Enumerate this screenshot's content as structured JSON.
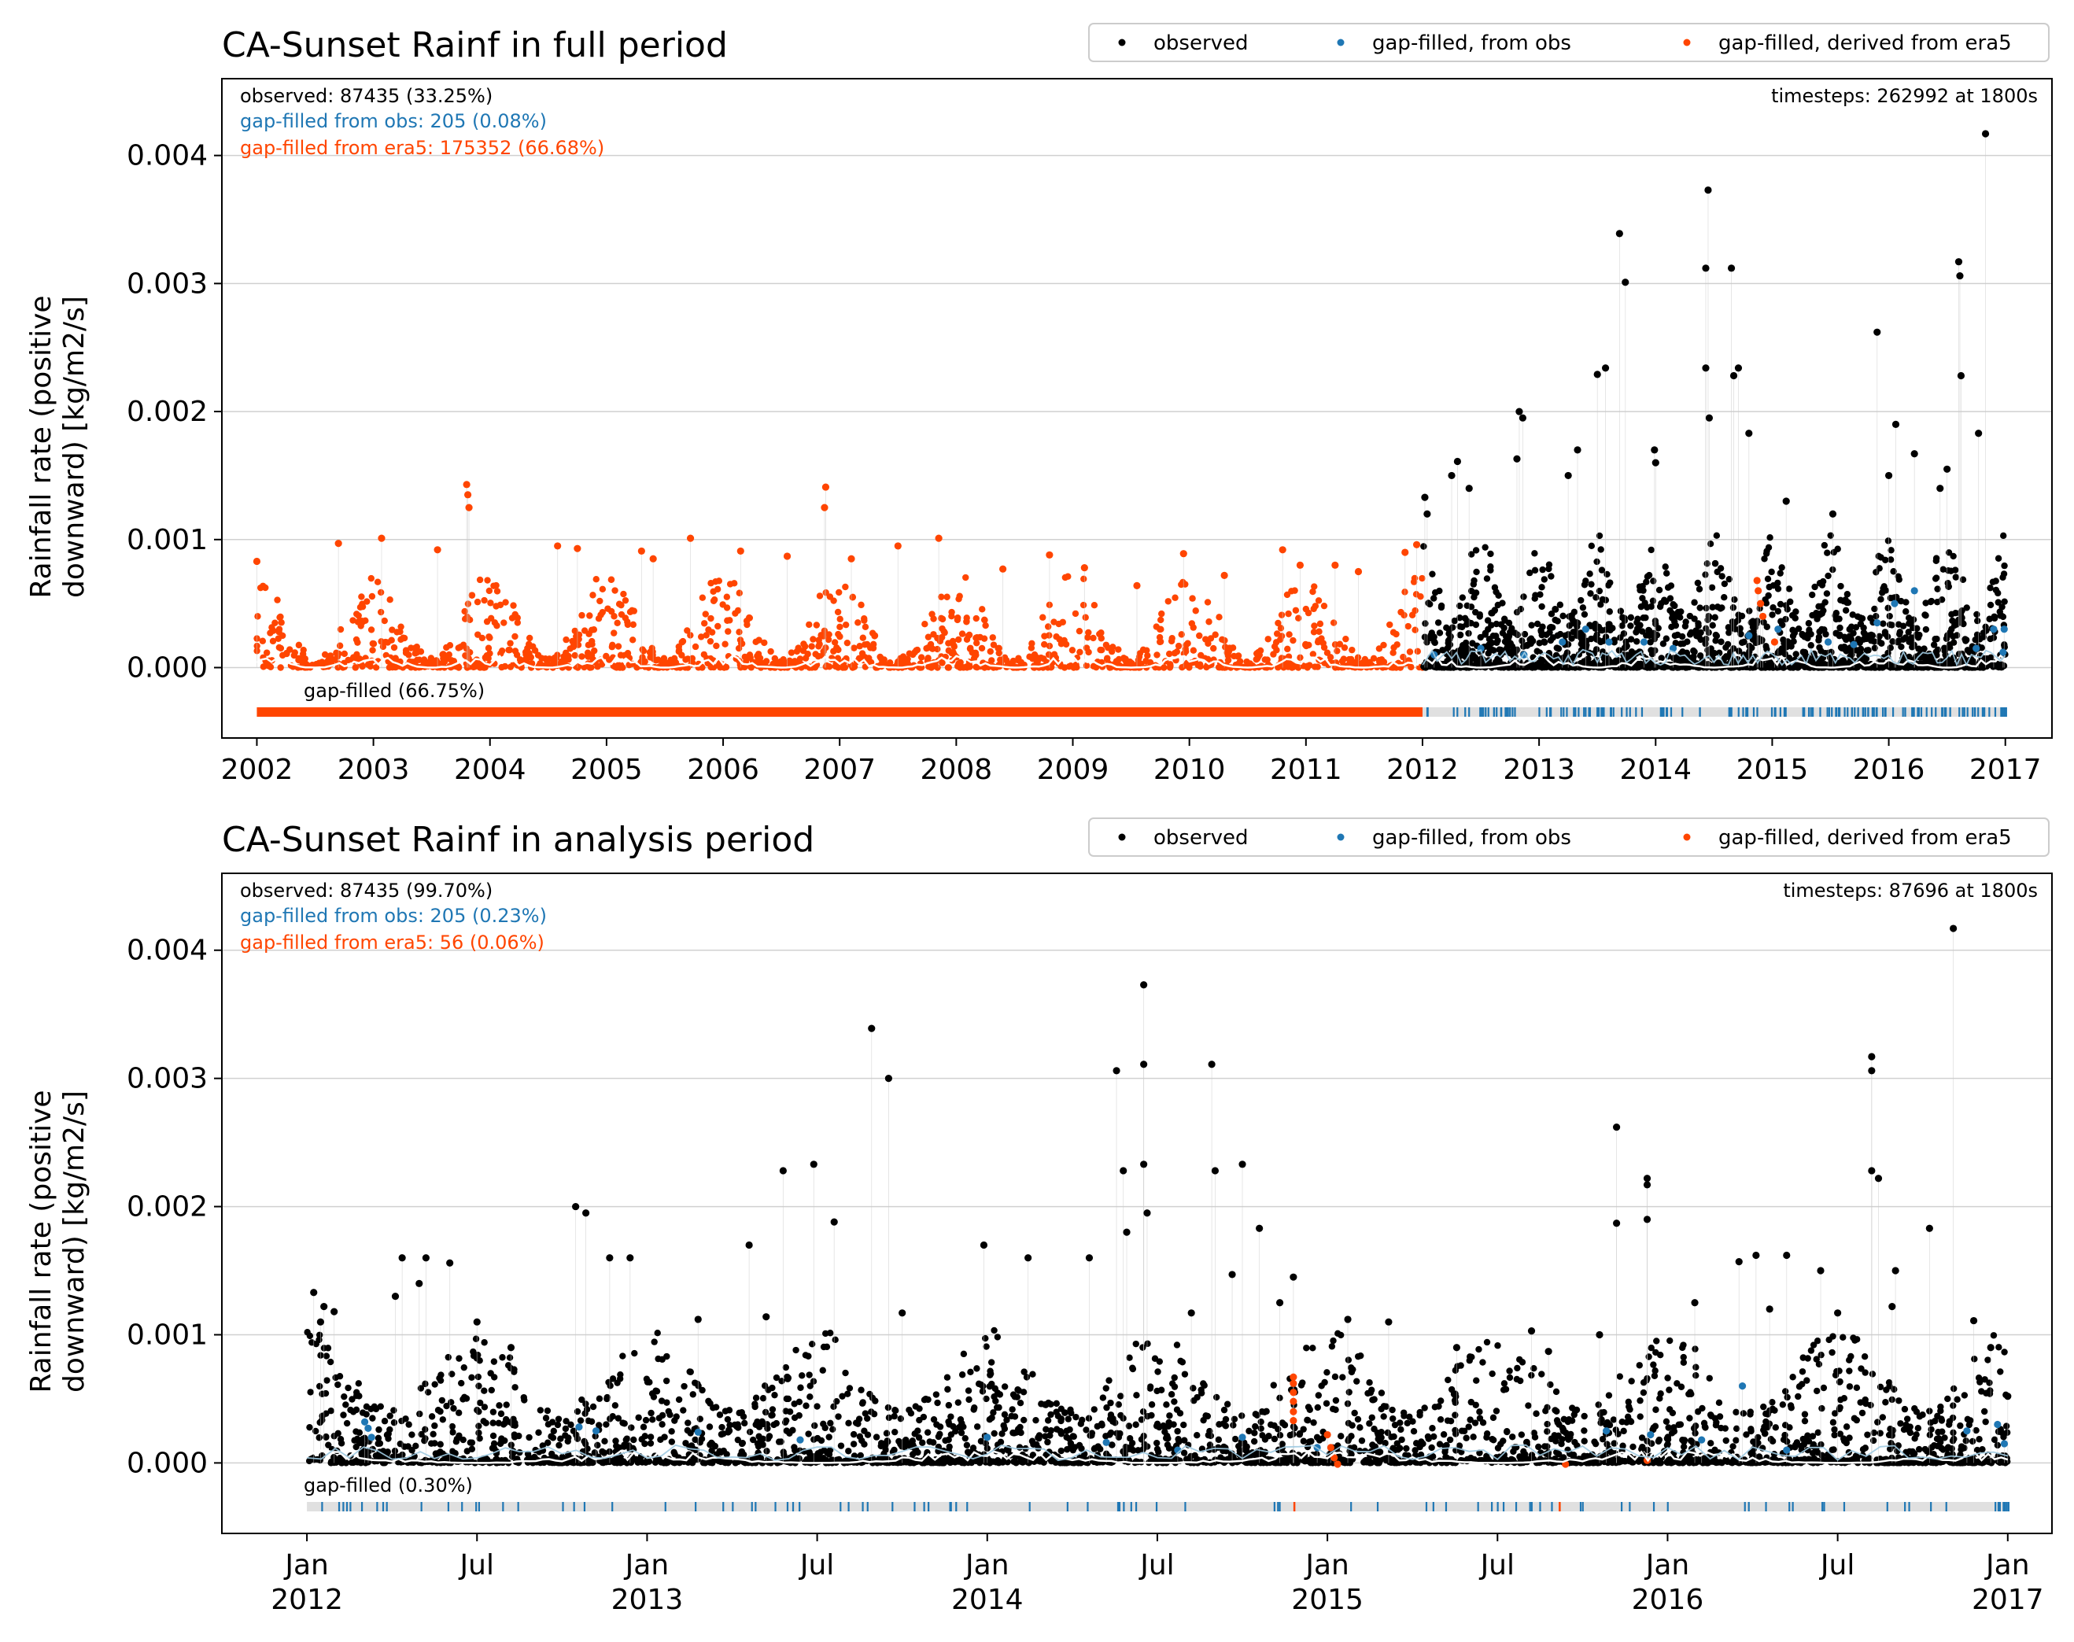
{
  "figure": {
    "colors": {
      "observed": "#000000",
      "from_obs": "#1f77b4",
      "from_era5": "#ff4500",
      "mean_line": "#ffffff",
      "gap_bg": "#e0e0e0",
      "grid": "#d0d0d0"
    },
    "legend": [
      "observed",
      "gap-filled, from obs",
      "gap-filled, derived from era5"
    ]
  },
  "chart_data": [
    {
      "type": "scatter",
      "title": "CA-Sunset Rainf in full period",
      "ylabel_lines": [
        "Rainfall rate (positive",
        "downward) [kg/m2/s]"
      ],
      "ylim": [
        -0.00055,
        0.0046
      ],
      "yticks": [
        "0.000",
        "0.001",
        "0.002",
        "0.003",
        "0.004"
      ],
      "ytick_values": [
        0,
        0.001,
        0.002,
        0.003,
        0.004
      ],
      "xlim": [
        2001.7,
        2017.4
      ],
      "xticks": [
        "2002",
        "2003",
        "2004",
        "2005",
        "2006",
        "2007",
        "2008",
        "2009",
        "2010",
        "2011",
        "2012",
        "2013",
        "2014",
        "2015",
        "2016",
        "2017"
      ],
      "xtick_values": [
        2002,
        2003,
        2004,
        2005,
        2006,
        2007,
        2008,
        2009,
        2010,
        2011,
        2012,
        2013,
        2014,
        2015,
        2016,
        2017
      ],
      "grid": "horizontal",
      "legend_position": "top-right",
      "annotations": {
        "observed": "observed: 87435 (33.25%)",
        "from_obs": "gap-filled from obs: 205 (0.08%)",
        "from_era5": "gap-filled from era5: 175352 (66.68%)",
        "timesteps": "timesteps: 262992 at 1800s",
        "gap_filled": "gap-filled (66.75%)"
      },
      "era5_period": [
        2002.0,
        2012.0
      ],
      "observed_period": [
        2012.0,
        2017.0
      ],
      "series": [
        {
          "name": "observed",
          "points": [
            [
              2013.69,
              0.00339
            ],
            [
              2013.74,
              0.00301
            ],
            [
              2014.45,
              0.00373
            ],
            [
              2014.43,
              0.00312
            ],
            [
              2014.65,
              0.00312
            ],
            [
              2016.83,
              0.00417
            ],
            [
              2016.6,
              0.00317
            ],
            [
              2016.61,
              0.00306
            ],
            [
              2015.9,
              0.00262
            ],
            [
              2014.43,
              0.00234
            ],
            [
              2013.5,
              0.00229
            ],
            [
              2013.57,
              0.00234
            ],
            [
              2016.62,
              0.00228
            ],
            [
              2014.67,
              0.00228
            ],
            [
              2014.71,
              0.00234
            ],
            [
              2012.83,
              0.002
            ],
            [
              2012.86,
              0.00195
            ],
            [
              2016.06,
              0.0019
            ],
            [
              2014.46,
              0.00195
            ],
            [
              2014.8,
              0.00183
            ],
            [
              2016.77,
              0.00183
            ],
            [
              2012.81,
              0.00163
            ],
            [
              2013.33,
              0.0017
            ],
            [
              2013.99,
              0.0017
            ],
            [
              2012.3,
              0.00161
            ],
            [
              2012.25,
              0.0015
            ],
            [
              2012.4,
              0.0014
            ],
            [
              2016.22,
              0.00167
            ],
            [
              2016.5,
              0.00155
            ],
            [
              2016.44,
              0.0014
            ],
            [
              2012.02,
              0.00133
            ],
            [
              2012.04,
              0.0012
            ],
            [
              2015.12,
              0.0013
            ],
            [
              2015.52,
              0.0012
            ],
            [
              2016.0,
              0.0015
            ],
            [
              2014.0,
              0.0016
            ],
            [
              2013.25,
              0.0015
            ]
          ]
        },
        {
          "name": "gap-filled, from obs",
          "points": [
            [
              2016.22,
              0.0006
            ],
            [
              2016.05,
              0.0005
            ],
            [
              2015.9,
              0.00035
            ],
            [
              2015.48,
              0.0002
            ],
            [
              2015.05,
              0.0003
            ],
            [
              2014.8,
              0.00025
            ],
            [
              2014.15,
              0.00015
            ],
            [
              2013.9,
              0.0002
            ],
            [
              2013.6,
              0.0002
            ],
            [
              2013.2,
              0.0002
            ],
            [
              2012.87,
              0.0001
            ],
            [
              2012.5,
              0.00015
            ],
            [
              2016.99,
              0.0003
            ],
            [
              2016.98,
              0.00012
            ],
            [
              2016.9,
              0.0003
            ],
            [
              2016.75,
              0.00015
            ],
            [
              2015.7,
              0.00018
            ],
            [
              2013.4,
              0.0003
            ],
            [
              2012.1,
              0.0001
            ]
          ]
        },
        {
          "name": "gap-filled, derived from era5",
          "points": [
            [
              2002.0,
              0.00083
            ],
            [
              2002.7,
              0.00097
            ],
            [
              2003.07,
              0.00101
            ],
            [
              2003.55,
              0.00092
            ],
            [
              2003.8,
              0.00143
            ],
            [
              2003.81,
              0.00135
            ],
            [
              2003.82,
              0.00125
            ],
            [
              2004.58,
              0.00095
            ],
            [
              2004.75,
              0.00093
            ],
            [
              2005.3,
              0.00091
            ],
            [
              2005.4,
              0.00085
            ],
            [
              2005.72,
              0.00101
            ],
            [
              2006.15,
              0.00091
            ],
            [
              2006.55,
              0.00087
            ],
            [
              2006.88,
              0.00141
            ],
            [
              2006.87,
              0.00125
            ],
            [
              2007.1,
              0.00085
            ],
            [
              2007.5,
              0.00095
            ],
            [
              2007.85,
              0.00101
            ],
            [
              2008.4,
              0.00077
            ],
            [
              2008.8,
              0.00088
            ],
            [
              2009.1,
              0.00078
            ],
            [
              2009.55,
              0.00064
            ],
            [
              2009.95,
              0.00089
            ],
            [
              2010.3,
              0.00072
            ],
            [
              2010.8,
              0.00092
            ],
            [
              2010.95,
              0.0008
            ],
            [
              2011.25,
              0.0008
            ],
            [
              2011.45,
              0.00075
            ],
            [
              2011.85,
              0.0009
            ],
            [
              2011.95,
              0.00096
            ],
            [
              2014.87,
              0.00068
            ],
            [
              2014.88,
              0.0006
            ],
            [
              2014.9,
              0.0005
            ],
            [
              2014.92,
              0.0004
            ],
            [
              2015.02,
              0.0002
            ]
          ]
        }
      ]
    },
    {
      "type": "scatter",
      "title": "CA-Sunset Rainf in analysis period",
      "ylabel_lines": [
        "Rainfall rate (positive",
        "downward) [kg/m2/s]"
      ],
      "ylim": [
        -0.00055,
        0.0046
      ],
      "yticks": [
        "0.000",
        "0.001",
        "0.002",
        "0.003",
        "0.004"
      ],
      "ytick_values": [
        0,
        0.001,
        0.002,
        0.003,
        0.004
      ],
      "xlim": [
        2011.75,
        2017.13
      ],
      "xticks": [
        [
          "Jan",
          "2012"
        ],
        [
          "Jul",
          ""
        ],
        [
          "Jan",
          "2013"
        ],
        [
          "Jul",
          ""
        ],
        [
          "Jan",
          "2014"
        ],
        [
          "Jul",
          ""
        ],
        [
          "Jan",
          "2015"
        ],
        [
          "Jul",
          ""
        ],
        [
          "Jan",
          "2016"
        ],
        [
          "Jul",
          ""
        ],
        [
          "Jan",
          "2017"
        ]
      ],
      "xtick_values": [
        2012.0,
        2012.5,
        2013.0,
        2013.5,
        2014.0,
        2014.5,
        2015.0,
        2015.5,
        2016.0,
        2016.5,
        2017.0
      ],
      "grid": "horizontal",
      "legend_position": "top-right",
      "annotations": {
        "observed": "observed: 87435 (99.70%)",
        "from_obs": "gap-filled from obs: 205 (0.23%)",
        "from_era5": "gap-filled from era5: 56 (0.06%)",
        "timesteps": "timesteps: 87696 at 1800s",
        "gap_filled": "gap-filled (0.30%)"
      },
      "era5_period": [],
      "observed_period": [
        2012.0,
        2017.0
      ],
      "series": [
        {
          "name": "observed",
          "points": [
            [
              2013.66,
              0.00339
            ],
            [
              2013.71,
              0.003
            ],
            [
              2014.46,
              0.00373
            ],
            [
              2014.38,
              0.00306
            ],
            [
              2014.46,
              0.00311
            ],
            [
              2014.66,
              0.00311
            ],
            [
              2016.84,
              0.00417
            ],
            [
              2016.6,
              0.00317
            ],
            [
              2016.6,
              0.00306
            ],
            [
              2015.85,
              0.00262
            ],
            [
              2013.4,
              0.00228
            ],
            [
              2013.49,
              0.00233
            ],
            [
              2014.4,
              0.00228
            ],
            [
              2014.46,
              0.00233
            ],
            [
              2014.67,
              0.00228
            ],
            [
              2014.75,
              0.00233
            ],
            [
              2016.6,
              0.00228
            ],
            [
              2016.62,
              0.00222
            ],
            [
              2015.94,
              0.00222
            ],
            [
              2015.94,
              0.00217
            ],
            [
              2012.79,
              0.002
            ],
            [
              2012.82,
              0.00195
            ],
            [
              2014.47,
              0.00195
            ],
            [
              2015.94,
              0.0019
            ],
            [
              2013.55,
              0.00188
            ],
            [
              2014.8,
              0.00183
            ],
            [
              2016.77,
              0.00183
            ],
            [
              2014.41,
              0.0018
            ],
            [
              2015.85,
              0.00187
            ],
            [
              2013.3,
              0.0017
            ],
            [
              2013.99,
              0.0017
            ],
            [
              2012.89,
              0.0016
            ],
            [
              2012.95,
              0.0016
            ],
            [
              2012.42,
              0.00156
            ],
            [
              2012.28,
              0.0016
            ],
            [
              2012.35,
              0.0016
            ],
            [
              2016.26,
              0.00162
            ],
            [
              2016.35,
              0.00162
            ],
            [
              2016.21,
              0.00157
            ],
            [
              2016.45,
              0.0015
            ],
            [
              2016.67,
              0.0015
            ],
            [
              2014.12,
              0.0016
            ],
            [
              2014.3,
              0.0016
            ],
            [
              2014.72,
              0.00147
            ],
            [
              2014.9,
              0.00145
            ],
            [
              2012.02,
              0.00133
            ],
            [
              2012.05,
              0.00122
            ],
            [
              2012.04,
              0.0011
            ],
            [
              2012.08,
              0.00118
            ],
            [
              2012.33,
              0.0014
            ],
            [
              2012.26,
              0.0013
            ],
            [
              2012.5,
              0.0011
            ],
            [
              2012.6,
              0.0009
            ],
            [
              2013.15,
              0.00112
            ],
            [
              2013.35,
              0.00114
            ],
            [
              2013.75,
              0.00117
            ],
            [
              2014.6,
              0.00117
            ],
            [
              2014.86,
              0.00125
            ],
            [
              2015.06,
              0.00112
            ],
            [
              2015.18,
              0.0011
            ],
            [
              2015.38,
              0.0009
            ],
            [
              2015.6,
              0.00103
            ],
            [
              2015.65,
              0.00087
            ],
            [
              2015.8,
              0.001
            ],
            [
              2016.08,
              0.00125
            ],
            [
              2016.3,
              0.0012
            ],
            [
              2016.5,
              0.00117
            ],
            [
              2016.66,
              0.00122
            ],
            [
              2016.9,
              0.00111
            ],
            [
              2016.95,
              0.0009
            ],
            [
              2017.0,
              0.00052
            ]
          ]
        },
        {
          "name": "gap-filled, from obs",
          "points": [
            [
              2012.17,
              0.00032
            ],
            [
              2012.18,
              0.00027
            ],
            [
              2012.19,
              0.0002
            ],
            [
              2012.8,
              0.00028
            ],
            [
              2012.85,
              0.00025
            ],
            [
              2013.15,
              0.00024
            ],
            [
              2013.45,
              0.00018
            ],
            [
              2014.0,
              0.0002
            ],
            [
              2014.35,
              0.00016
            ],
            [
              2014.56,
              0.0001
            ],
            [
              2014.75,
              0.0002
            ],
            [
              2014.97,
              0.00012
            ],
            [
              2015.82,
              0.00025
            ],
            [
              2015.95,
              0.00022
            ],
            [
              2016.1,
              0.00018
            ],
            [
              2016.22,
              0.0006
            ],
            [
              2016.35,
              0.0001
            ],
            [
              2016.97,
              0.0003
            ],
            [
              2016.99,
              0.00015
            ],
            [
              2016.88,
              0.00025
            ]
          ]
        },
        {
          "name": "gap-filled, derived from era5",
          "points": [
            [
              2014.9,
              0.00067
            ],
            [
              2014.9,
              0.00062
            ],
            [
              2014.9,
              0.00055
            ],
            [
              2014.9,
              0.00048
            ],
            [
              2014.9,
              0.0004
            ],
            [
              2014.9,
              0.00033
            ],
            [
              2015.0,
              0.00022
            ],
            [
              2015.01,
              0.00012
            ],
            [
              2015.02,
              4e-05
            ],
            [
              2015.03,
              -1e-05
            ],
            [
              2015.7,
              -1e-05
            ],
            [
              2015.94,
              2e-05
            ]
          ]
        }
      ]
    }
  ]
}
